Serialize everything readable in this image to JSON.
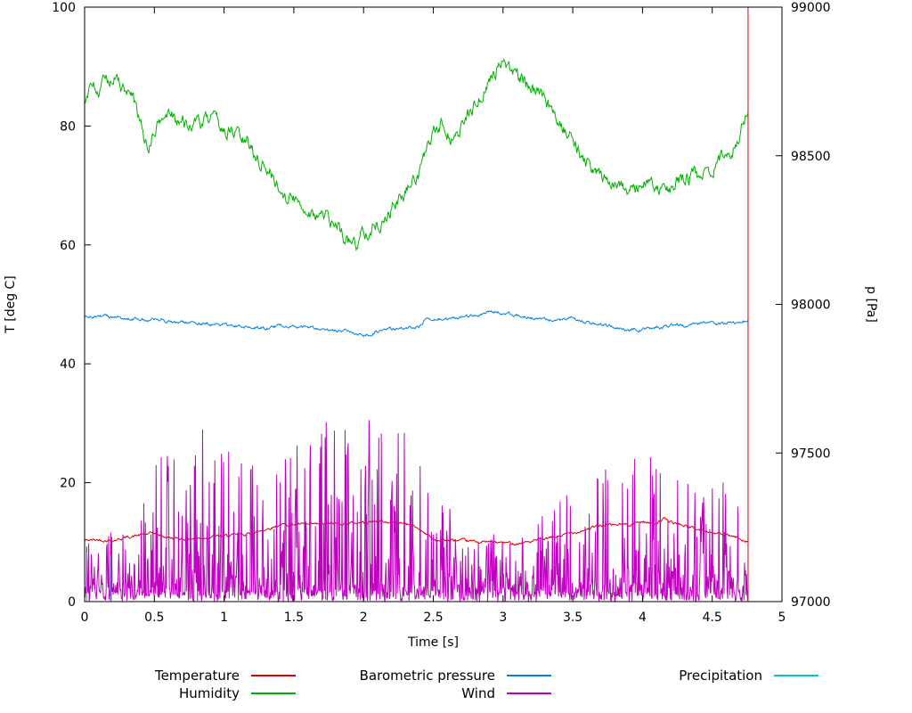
{
  "chart_data": {
    "type": "line",
    "title": "",
    "seed": 42,
    "axes": {
      "x": {
        "label": "Time [s]",
        "min": 0,
        "max": 5,
        "ticks": [
          0,
          0.5,
          1,
          1.5,
          2,
          2.5,
          3,
          3.5,
          4,
          4.5,
          5
        ],
        "tick_labels": [
          "0",
          "0.5",
          "1",
          "1.5",
          "2",
          "2.5",
          "3",
          "3.5",
          "4",
          "4.5",
          "5"
        ]
      },
      "y": {
        "label": "T [deg C]",
        "min": 0,
        "max": 100,
        "ticks": [
          0,
          20,
          40,
          60,
          80,
          100
        ],
        "tick_labels": [
          "0",
          "20",
          "40",
          "60",
          "80",
          "100"
        ]
      },
      "y2": {
        "label": "p [Pa]",
        "min": 97000,
        "max": 99000,
        "ticks": [
          97000,
          97500,
          98000,
          98500,
          99000
        ],
        "tick_labels": [
          "97000",
          "97500",
          "98000",
          "98500",
          "99000"
        ]
      }
    },
    "series": [
      {
        "name": "Temperature",
        "color": "#dd0000",
        "axis": "y",
        "gen": "trend",
        "samples": 900,
        "t_start": 0,
        "t_end": 4.757,
        "noise_amp": 0.18,
        "anchors": [
          [
            0,
            10.3
          ],
          [
            0.1,
            10.4
          ],
          [
            0.2,
            10.3
          ],
          [
            0.3,
            10.8
          ],
          [
            0.4,
            11.2
          ],
          [
            0.5,
            11.5
          ],
          [
            0.55,
            11.0
          ],
          [
            0.65,
            10.6
          ],
          [
            0.8,
            10.6
          ],
          [
            0.9,
            10.9
          ],
          [
            1.0,
            11.0
          ],
          [
            1.1,
            11.2
          ],
          [
            1.2,
            11.4
          ],
          [
            1.3,
            12.2
          ],
          [
            1.4,
            12.9
          ],
          [
            1.5,
            13.0
          ],
          [
            1.6,
            12.9
          ],
          [
            1.7,
            13.0
          ],
          [
            1.8,
            13.1
          ],
          [
            1.9,
            13.2
          ],
          [
            2.0,
            13.3
          ],
          [
            2.1,
            13.5
          ],
          [
            2.2,
            13.3
          ],
          [
            2.3,
            13.2
          ],
          [
            2.35,
            12.8
          ],
          [
            2.45,
            11.5
          ],
          [
            2.5,
            10.4
          ],
          [
            2.6,
            10.3
          ],
          [
            2.7,
            10.2
          ],
          [
            2.8,
            10.1
          ],
          [
            2.9,
            10.0
          ],
          [
            3.0,
            9.9
          ],
          [
            3.1,
            9.8
          ],
          [
            3.2,
            10.1
          ],
          [
            3.3,
            10.5
          ],
          [
            3.4,
            11.0
          ],
          [
            3.5,
            11.6
          ],
          [
            3.6,
            12.2
          ],
          [
            3.7,
            12.8
          ],
          [
            3.8,
            12.9
          ],
          [
            3.9,
            13.0
          ],
          [
            4.0,
            13.5
          ],
          [
            4.05,
            13.2
          ],
          [
            4.1,
            13.3
          ],
          [
            4.15,
            13.9
          ],
          [
            4.2,
            13.4
          ],
          [
            4.3,
            12.8
          ],
          [
            4.4,
            12.1
          ],
          [
            4.5,
            11.6
          ],
          [
            4.6,
            11.1
          ],
          [
            4.65,
            10.9
          ],
          [
            4.7,
            10.6
          ],
          [
            4.76,
            10.2
          ]
        ],
        "vline": {
          "t": 4.757,
          "from": 0,
          "to": 100
        }
      },
      {
        "name": "Humidity",
        "color": "#00b000",
        "axis": "y",
        "gen": "trend",
        "samples": 900,
        "t_start": 0,
        "t_end": 4.757,
        "noise_amp": 0.9,
        "anchors": [
          [
            0,
            84
          ],
          [
            0.05,
            86.5
          ],
          [
            0.1,
            85.5
          ],
          [
            0.15,
            87.5
          ],
          [
            0.2,
            88.5
          ],
          [
            0.28,
            86
          ],
          [
            0.35,
            84
          ],
          [
            0.42,
            79
          ],
          [
            0.45,
            75.5
          ],
          [
            0.5,
            79
          ],
          [
            0.55,
            81
          ],
          [
            0.62,
            82.5
          ],
          [
            0.7,
            80.5
          ],
          [
            0.8,
            80
          ],
          [
            0.9,
            81
          ],
          [
            1.0,
            79.5
          ],
          [
            1.1,
            78.5
          ],
          [
            1.2,
            76
          ],
          [
            1.3,
            73
          ],
          [
            1.4,
            69.5
          ],
          [
            1.5,
            67.5
          ],
          [
            1.6,
            66
          ],
          [
            1.7,
            65
          ],
          [
            1.8,
            63
          ],
          [
            1.9,
            60.5
          ],
          [
            1.95,
            60
          ],
          [
            2.0,
            62.5
          ],
          [
            2.1,
            63.5
          ],
          [
            2.2,
            66
          ],
          [
            2.3,
            68.5
          ],
          [
            2.4,
            72.5
          ],
          [
            2.5,
            78.5
          ],
          [
            2.55,
            80.5
          ],
          [
            2.6,
            79
          ],
          [
            2.65,
            77.5
          ],
          [
            2.7,
            80
          ],
          [
            2.8,
            83.5
          ],
          [
            2.9,
            87.5
          ],
          [
            2.95,
            89.5
          ],
          [
            3.0,
            91.5
          ],
          [
            3.05,
            90
          ],
          [
            3.1,
            88.5
          ],
          [
            3.2,
            86.5
          ],
          [
            3.3,
            84
          ],
          [
            3.4,
            81.5
          ],
          [
            3.5,
            77.5
          ],
          [
            3.6,
            73.5
          ],
          [
            3.7,
            71.5
          ],
          [
            3.8,
            71
          ],
          [
            3.9,
            69.5
          ],
          [
            3.95,
            68.5
          ],
          [
            4.0,
            70
          ],
          [
            4.05,
            71
          ],
          [
            4.1,
            69
          ],
          [
            4.2,
            69.5
          ],
          [
            4.3,
            71.5
          ],
          [
            4.4,
            71.5
          ],
          [
            4.5,
            73
          ],
          [
            4.6,
            75
          ],
          [
            4.65,
            76.5
          ],
          [
            4.7,
            79
          ],
          [
            4.73,
            81
          ],
          [
            4.76,
            84
          ]
        ]
      },
      {
        "name": "Barometric pressure",
        "color": "#0080e0",
        "axis": "y2",
        "gen": "trend",
        "samples": 900,
        "t_start": 0,
        "t_end": 4.757,
        "noise_amp": 4,
        "anchors": [
          [
            0,
            97960
          ],
          [
            0.2,
            97958
          ],
          [
            0.4,
            97950
          ],
          [
            0.6,
            97944
          ],
          [
            0.8,
            97936
          ],
          [
            1.0,
            97930
          ],
          [
            1.1,
            97926
          ],
          [
            1.2,
            97928
          ],
          [
            1.3,
            97918
          ],
          [
            1.4,
            97930
          ],
          [
            1.5,
            97924
          ],
          [
            1.6,
            97922
          ],
          [
            1.7,
            97912
          ],
          [
            1.8,
            97912
          ],
          [
            1.9,
            97908
          ],
          [
            2.0,
            97896
          ],
          [
            2.05,
            97900
          ],
          [
            2.1,
            97910
          ],
          [
            2.2,
            97916
          ],
          [
            2.3,
            97918
          ],
          [
            2.4,
            97926
          ],
          [
            2.45,
            97956
          ],
          [
            2.5,
            97952
          ],
          [
            2.6,
            97950
          ],
          [
            2.7,
            97956
          ],
          [
            2.8,
            97962
          ],
          [
            2.9,
            97978
          ],
          [
            3.0,
            97970
          ],
          [
            3.1,
            97962
          ],
          [
            3.2,
            97954
          ],
          [
            3.3,
            97948
          ],
          [
            3.4,
            97946
          ],
          [
            3.5,
            97956
          ],
          [
            3.55,
            97944
          ],
          [
            3.6,
            97940
          ],
          [
            3.7,
            97934
          ],
          [
            3.8,
            97924
          ],
          [
            3.9,
            97912
          ],
          [
            4.0,
            97916
          ],
          [
            4.1,
            97924
          ],
          [
            4.2,
            97928
          ],
          [
            4.3,
            97930
          ],
          [
            4.4,
            97934
          ],
          [
            4.5,
            97938
          ],
          [
            4.6,
            97934
          ],
          [
            4.7,
            97942
          ],
          [
            4.76,
            97946
          ]
        ]
      },
      {
        "name": "Wind",
        "color": "#bf00bf",
        "axis": "y",
        "gen": "spiky",
        "samples": 1300,
        "t_start": 0,
        "t_end": 4.757,
        "envelope": [
          [
            0,
            4
          ],
          [
            0.2,
            4
          ],
          [
            0.35,
            3
          ],
          [
            0.45,
            8
          ],
          [
            0.55,
            11
          ],
          [
            0.65,
            10
          ],
          [
            0.75,
            9
          ],
          [
            0.85,
            13
          ],
          [
            0.95,
            14
          ],
          [
            1.05,
            10
          ],
          [
            1.15,
            9
          ],
          [
            1.25,
            9
          ],
          [
            1.35,
            10
          ],
          [
            1.45,
            11
          ],
          [
            1.55,
            11
          ],
          [
            1.65,
            12
          ],
          [
            1.75,
            12
          ],
          [
            1.85,
            11
          ],
          [
            1.95,
            12
          ],
          [
            2.05,
            13
          ],
          [
            2.15,
            12
          ],
          [
            2.25,
            12
          ],
          [
            2.35,
            11
          ],
          [
            2.45,
            8
          ],
          [
            2.55,
            6
          ],
          [
            2.65,
            5
          ],
          [
            2.75,
            4
          ],
          [
            2.85,
            4
          ],
          [
            2.95,
            4
          ],
          [
            3.05,
            4
          ],
          [
            3.15,
            4
          ],
          [
            3.25,
            5
          ],
          [
            3.35,
            5
          ],
          [
            3.45,
            9
          ],
          [
            3.55,
            8
          ],
          [
            3.65,
            8
          ],
          [
            3.75,
            9
          ],
          [
            3.85,
            9
          ],
          [
            3.95,
            10
          ],
          [
            4.05,
            9
          ],
          [
            4.15,
            8
          ],
          [
            4.25,
            8
          ],
          [
            4.35,
            8
          ],
          [
            4.45,
            8
          ],
          [
            4.55,
            7
          ],
          [
            4.65,
            7
          ],
          [
            4.76,
            6
          ]
        ]
      },
      {
        "name": "Precipitation",
        "color": "#00c8c8",
        "axis": "y",
        "gen": "explicit",
        "points": [
          [
            0,
            0
          ],
          [
            0.015,
            0
          ],
          [
            0.015,
            8.3
          ],
          [
            0.015,
            0
          ],
          [
            0.185,
            0
          ],
          [
            0.185,
            7.8
          ],
          [
            0.185,
            0
          ],
          [
            4.757,
            0
          ]
        ]
      }
    ],
    "legend_position": "bottom"
  }
}
